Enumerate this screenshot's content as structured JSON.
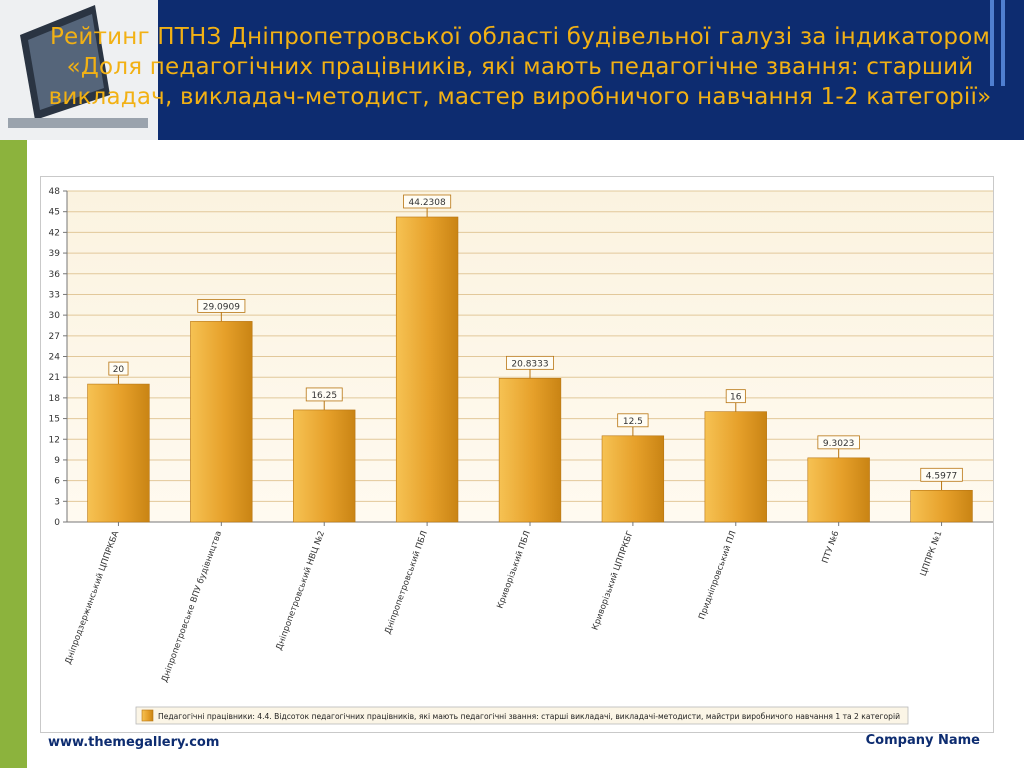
{
  "slide": {
    "title": "Рейтинг ПТНЗ Дніпропетровської області будівельної галузі за індикатором «Доля педагогічних працівників, які мають педагогічне звання: старший викладач, викладач-методист, мастер виробничого навчання 1-2 категорії»",
    "footer_left": "www.themegallery.com",
    "footer_right": "Company Name"
  },
  "colors": {
    "accent_title": "#f2b114",
    "band": "#0d2c70",
    "green_bar": "#8cb33d",
    "bar_fill": "#e09a1e"
  },
  "chart_data": {
    "type": "bar",
    "categories": [
      "Дніпродзержинський ЦППРКБА",
      "Дніпропетровське ВПУ будівництва",
      "Дніпропетровський НВЦ №2",
      "Дніпропетровський ПБЛ",
      "Криворізький ПБЛ",
      "Криворізький ЦППРКБГ",
      "Придніпровський ПЛ",
      "ПТУ №6",
      "ЦППРК №1"
    ],
    "values": [
      20,
      29.0909,
      16.25,
      44.2308,
      20.8333,
      12.5,
      16,
      9.3023,
      4.5977
    ],
    "value_labels": [
      "20",
      "29.0909",
      "16.25",
      "44.2308",
      "20.8333",
      "12.5",
      "16",
      "9.3023",
      "4.5977"
    ],
    "yticks": [
      0,
      3,
      6,
      9,
      12,
      15,
      18,
      21,
      24,
      27,
      30,
      33,
      36,
      39,
      42,
      45,
      48
    ],
    "ylim": [
      0,
      48
    ],
    "grid": true,
    "legend_position": "bottom-right",
    "series": [
      {
        "name": "Педагогічні працівники: 4.4. Відсоток педагогічних працівників, які мають педагогічні звання: старші викладачі, викладачі-методисти, майстри виробничого навчання 1 та 2 категорій"
      }
    ]
  }
}
